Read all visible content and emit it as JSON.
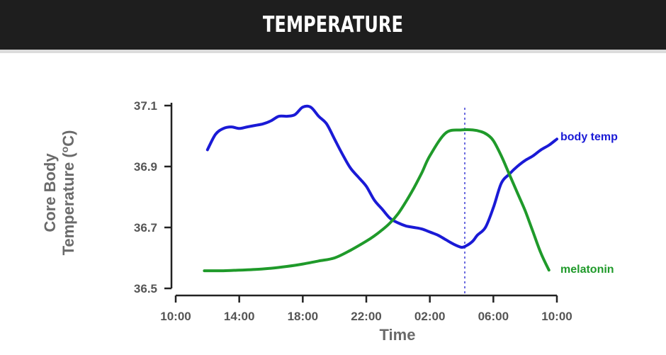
{
  "header": {
    "title": "Temperature"
  },
  "chart_data": {
    "type": "line",
    "ylabel_line1": "Core Body",
    "ylabel_line2": "Temperature (",
    "ylabel_superscript": "o",
    "ylabel_line2_end": "C)",
    "xlabel": "Time",
    "ylim": [
      36.5,
      37.1
    ],
    "y_ticks": [
      "36.5",
      "36.7",
      "36.9",
      "37.1"
    ],
    "x_ticks": [
      "10:00",
      "14:00",
      "18:00",
      "22:00",
      "02:00",
      "06:00",
      "10:00"
    ],
    "x_range_hours": [
      0,
      24
    ],
    "reference_line_hours": 18.2,
    "series": [
      {
        "name": "body temp",
        "color": "#1a1ad6",
        "x": [
          2,
          2.5,
          3,
          3.5,
          4,
          4.5,
          5,
          5.5,
          6,
          6.5,
          7,
          7.5,
          8,
          8.5,
          9,
          9.5,
          10,
          10.5,
          11,
          11.5,
          12,
          12.5,
          13,
          13.5,
          14,
          14.5,
          15,
          15.5,
          16,
          16.5,
          17,
          17.5,
          18,
          18.3,
          18.7,
          19,
          19.5,
          20,
          20.5,
          21,
          21.5,
          22,
          22.5,
          23,
          23.5,
          24
        ],
        "y": [
          36.955,
          37.005,
          37.025,
          37.03,
          37.025,
          37.03,
          37.035,
          37.04,
          37.05,
          37.065,
          37.065,
          37.07,
          37.095,
          37.095,
          37.065,
          37.04,
          36.99,
          36.94,
          36.895,
          36.865,
          36.835,
          36.79,
          36.76,
          36.73,
          36.715,
          36.705,
          36.7,
          36.695,
          36.685,
          36.675,
          36.66,
          36.645,
          36.635,
          36.64,
          36.655,
          36.675,
          36.7,
          36.765,
          36.845,
          36.875,
          36.9,
          36.92,
          36.935,
          36.955,
          36.97,
          36.99
        ]
      },
      {
        "name": "melatonin",
        "color": "#1f9a2a",
        "x": [
          1.8,
          3,
          4,
          5,
          6,
          7,
          8,
          9,
          10,
          11,
          12,
          12.5,
          13,
          13.5,
          14,
          14.5,
          15,
          15.5,
          16,
          17,
          18,
          18.7,
          19.2,
          19.6,
          20,
          20.5,
          21,
          21.5,
          22,
          22.5,
          23,
          23.5
        ],
        "y": [
          36.558,
          36.558,
          36.56,
          36.562,
          36.566,
          36.572,
          36.58,
          36.59,
          36.6,
          36.625,
          36.655,
          36.672,
          36.692,
          36.715,
          36.745,
          36.785,
          36.83,
          36.88,
          36.935,
          37.01,
          37.02,
          37.02,
          37.015,
          37.005,
          36.985,
          36.935,
          36.875,
          36.815,
          36.755,
          36.685,
          36.615,
          36.56
        ]
      }
    ],
    "series_labels": {
      "body_temp": "body temp",
      "melatonin": "melatonin"
    }
  }
}
